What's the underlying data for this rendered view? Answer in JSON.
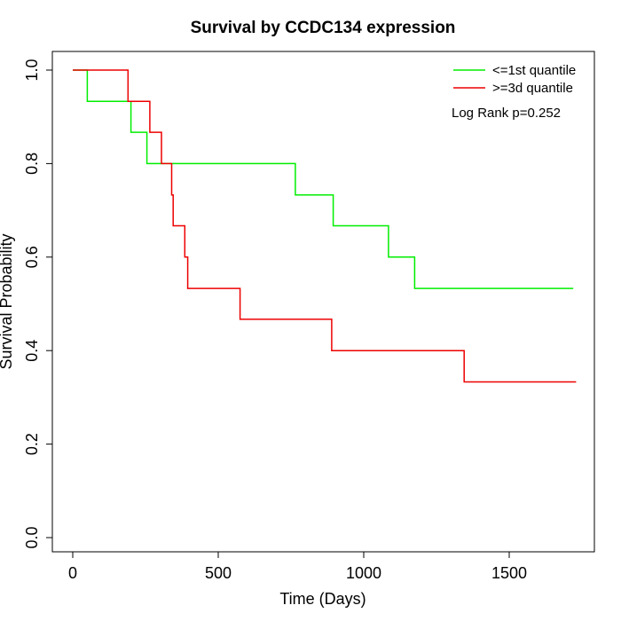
{
  "chart_data": {
    "type": "line",
    "title": "Survival by CCDC134 expression",
    "xlabel": "Time (Days)",
    "ylabel": "Survival Probability",
    "xlim": [
      0,
      1800
    ],
    "ylim": [
      0,
      1
    ],
    "xticks": [
      0,
      500,
      1000,
      1500
    ],
    "yticks": [
      0.0,
      0.2,
      0.4,
      0.6,
      0.8,
      1.0
    ],
    "xtick_labels": [
      "0",
      "500",
      "1000",
      "1500"
    ],
    "ytick_labels": [
      "0.0",
      "0.2",
      "0.4",
      "0.6",
      "0.8",
      "1.0"
    ],
    "grid": false,
    "legend_position": "top-right",
    "annotation": "Log Rank p=0.252",
    "series": [
      {
        "name": "<=1st quantile",
        "color": "#00ee00",
        "x": [
          0,
          50,
          50,
          200,
          200,
          255,
          255,
          765,
          765,
          895,
          895,
          1085,
          1085,
          1175,
          1175,
          1720
        ],
        "y": [
          1.0,
          1.0,
          0.933,
          0.933,
          0.867,
          0.867,
          0.8,
          0.8,
          0.733,
          0.733,
          0.667,
          0.667,
          0.6,
          0.6,
          0.533,
          0.533
        ]
      },
      {
        "name": ">=3d quantile",
        "color": "#ee0000",
        "x": [
          0,
          190,
          190,
          265,
          265,
          305,
          305,
          340,
          340,
          345,
          345,
          385,
          385,
          395,
          395,
          575,
          575,
          890,
          890,
          1345,
          1345,
          1730
        ],
        "y": [
          1.0,
          1.0,
          0.933,
          0.933,
          0.867,
          0.867,
          0.8,
          0.8,
          0.733,
          0.733,
          0.667,
          0.667,
          0.6,
          0.6,
          0.533,
          0.533,
          0.467,
          0.467,
          0.4,
          0.4,
          0.333,
          0.333
        ]
      }
    ]
  }
}
